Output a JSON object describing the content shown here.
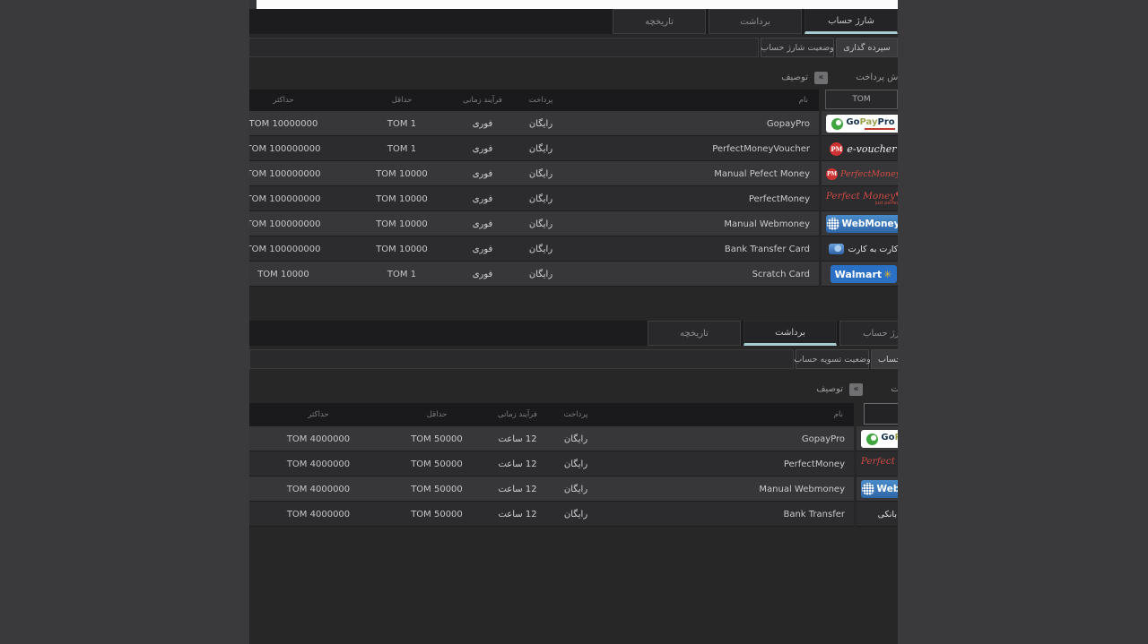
{
  "colors": {
    "accent_underline": "#a9ccd3",
    "page_background": "#3a3a3c",
    "content_background": "#272727",
    "webmoney_blue": "#3572b4",
    "walmart_blue": "#2a70c5",
    "walmart_spark_yellow": "#f8b921",
    "perfectmoney_red": "#cf4a42",
    "gopaypro_green": "#3fa53f"
  },
  "icons": {
    "collapse": "«"
  },
  "logos": {
    "gopaypro": {
      "go": "Go",
      "pay": "Pay",
      "pro": "Pro"
    },
    "evoucher": {
      "pm": "PM",
      "text": "e-voucher"
    },
    "pm_red": {
      "pm": "PM",
      "text": "PerfectMoney"
    },
    "pm_text": {
      "text": "Perfect Money",
      "tagline": "just perfect"
    },
    "webmoney": {
      "text": "WebMoney"
    },
    "card2card": {
      "text": "کارت به کارت"
    },
    "walmart": {
      "text": "Walmart",
      "spark": "✳"
    },
    "bank": {
      "text": "حواله بانکی"
    }
  },
  "top": {
    "tab_charge": "شارژ حساب",
    "tab_withdraw": "برداشت",
    "tab_history": "تاریخچه",
    "status_button": "وضعیت شارژ حساب",
    "action_button": "سپرده گذاری",
    "desc_label": "توصیف",
    "panel_title": "روش پرداخت",
    "filter_value": "TOM",
    "headers": {
      "name": "نام",
      "payment": "پرداخت",
      "timeframe": "فرآیند زمانی",
      "min": "حداقل",
      "max": "حداکثر"
    },
    "rows": [
      {
        "name": "GopayPro",
        "payment": "رایگان",
        "timeframe": "فوری",
        "min": "TOM 1",
        "max": "TOM 10000000",
        "logo": "gopaypro"
      },
      {
        "name": "PerfectMoneyVoucher",
        "payment": "رایگان",
        "timeframe": "فوری",
        "min": "TOM 1",
        "max": "TOM 100000000",
        "logo": "evoucher"
      },
      {
        "name": "Manual Pefect Money",
        "payment": "رایگان",
        "timeframe": "فوری",
        "min": "TOM 10000",
        "max": "TOM 100000000",
        "logo": "pm_red"
      },
      {
        "name": "PerfectMoney",
        "payment": "رایگان",
        "timeframe": "فوری",
        "min": "TOM 10000",
        "max": "TOM 100000000",
        "logo": "pm_text"
      },
      {
        "name": "Manual Webmoney",
        "payment": "رایگان",
        "timeframe": "فوری",
        "min": "TOM 10000",
        "max": "TOM 100000000",
        "logo": "webmoney"
      },
      {
        "name": "Bank Transfer Card",
        "payment": "رایگان",
        "timeframe": "فوری",
        "min": "TOM 10000",
        "max": "TOM 100000000",
        "logo": "card2card"
      },
      {
        "name": "Scratch Card",
        "payment": "رایگان",
        "timeframe": "فوری",
        "min": "TOM 1",
        "max": "TOM 10000",
        "logo": "walmart"
      }
    ]
  },
  "bottom": {
    "tab_charge": "شارژ حساب",
    "tab_withdraw": "برداشت",
    "tab_history": "تاریخچه",
    "status_button": "وضعیت تسویه حساب",
    "action_button": "تسویه حساب",
    "desc_label": "توصیف",
    "panel_title": "روش پرداخت",
    "filter_value": "",
    "headers": {
      "name": "نام",
      "payment": "پرداخت",
      "timeframe": "فرآیند زمانی",
      "min": "حداقل",
      "max": "حداکثر"
    },
    "rows": [
      {
        "name": "GopayPro",
        "payment": "رایگان",
        "timeframe": "12 ساعت",
        "min": "TOM 50000",
        "max": "TOM 4000000",
        "logo": "gopaypro"
      },
      {
        "name": "PerfectMoney",
        "payment": "رایگان",
        "timeframe": "12 ساعت",
        "min": "TOM 50000",
        "max": "TOM 4000000",
        "logo": "pm_text"
      },
      {
        "name": "Manual Webmoney",
        "payment": "رایگان",
        "timeframe": "12 ساعت",
        "min": "TOM 50000",
        "max": "TOM 4000000",
        "logo": "webmoney"
      },
      {
        "name": "Bank Transfer",
        "payment": "رایگان",
        "timeframe": "12 ساعت",
        "min": "TOM 50000",
        "max": "TOM 4000000",
        "logo": "bank"
      }
    ]
  }
}
